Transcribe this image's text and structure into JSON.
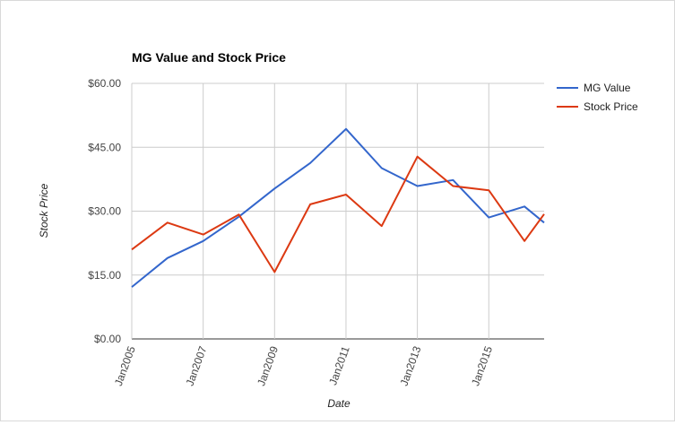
{
  "chart_data": {
    "type": "line",
    "title": "MG Value and Stock Price",
    "xlabel": "Date",
    "ylabel": "Stock Price",
    "ylim": [
      0,
      60
    ],
    "y_ticks": [
      "$0.00",
      "$15.00",
      "$30.00",
      "$45.00",
      "$60.00"
    ],
    "xlim": [
      2005,
      2016.55
    ],
    "x_ticks": [
      {
        "value": 2005,
        "label": "Jan2005"
      },
      {
        "value": 2007,
        "label": "Jan2007"
      },
      {
        "value": 2009,
        "label": "Jan2009"
      },
      {
        "value": 2011,
        "label": "Jan2011"
      },
      {
        "value": 2013,
        "label": "Jan2013"
      },
      {
        "value": 2015,
        "label": "Jan2015"
      }
    ],
    "grid": true,
    "legend_position": "right",
    "series": [
      {
        "name": "MG Value",
        "color": "#3366cc",
        "points": [
          [
            2005,
            12.2
          ],
          [
            2006,
            19.0
          ],
          [
            2007,
            23.0
          ],
          [
            2008,
            28.7
          ],
          [
            2009,
            35.3
          ],
          [
            2010,
            41.3
          ],
          [
            2011,
            49.3
          ],
          [
            2012,
            40.1
          ],
          [
            2013,
            35.9
          ],
          [
            2014,
            37.3
          ],
          [
            2015,
            28.5
          ],
          [
            2016,
            31.1
          ],
          [
            2016.55,
            27.3
          ]
        ]
      },
      {
        "name": "Stock Price",
        "color": "#dc3912",
        "points": [
          [
            2005,
            21.0
          ],
          [
            2006,
            27.3
          ],
          [
            2007,
            24.5
          ],
          [
            2008,
            29.2
          ],
          [
            2009,
            15.7
          ],
          [
            2010,
            31.6
          ],
          [
            2011,
            33.9
          ],
          [
            2012,
            26.5
          ],
          [
            2013,
            42.8
          ],
          [
            2014,
            35.9
          ],
          [
            2015,
            34.9
          ],
          [
            2016,
            23.0
          ],
          [
            2016.55,
            29.3
          ]
        ]
      }
    ]
  },
  "colors": {
    "gridline": "#cccccc",
    "baseline": "#333333"
  }
}
